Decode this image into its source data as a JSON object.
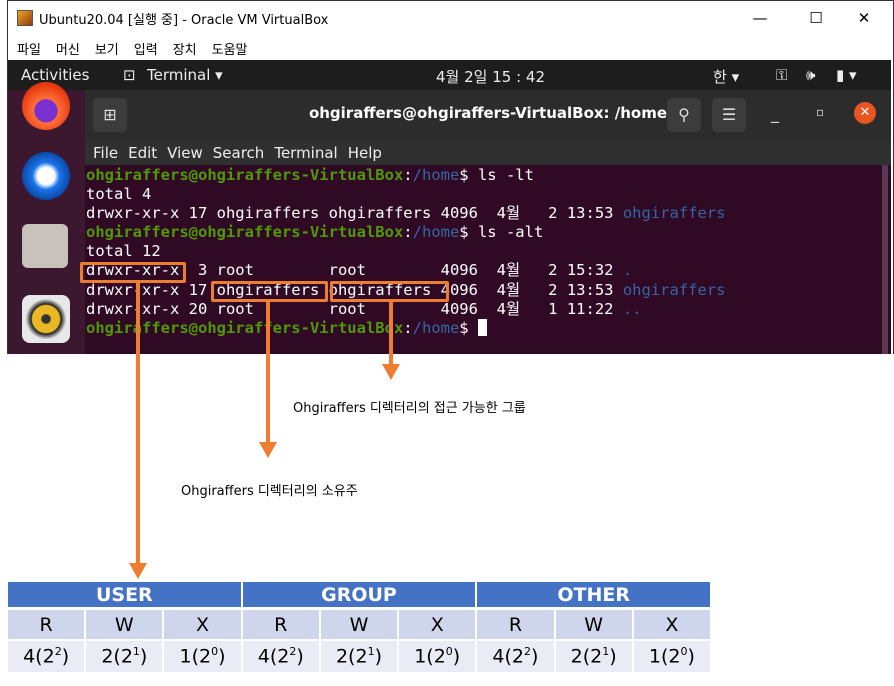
{
  "window": {
    "title": "Ubuntu20.04 [실행 중] - Oracle VM VirtualBox",
    "menu": [
      "파일",
      "머신",
      "보기",
      "입력",
      "장치",
      "도움말"
    ]
  },
  "topbar": {
    "activities": "Activities",
    "app": "Terminal ▾",
    "clock": "4월 2일  15 : 42",
    "ime": "한 ▾"
  },
  "terminal": {
    "title": "ohgiraffers@ohgiraffers-VirtualBox: /home",
    "menu": [
      "File",
      "Edit",
      "View",
      "Search",
      "Terminal",
      "Help"
    ],
    "prompt_user": "ohgiraffers@ohgiraffers-VirtualBox",
    "prompt_path": "/home",
    "cmd1": " ls -lt",
    "out1": [
      "total 4"
    ],
    "row_lt": "drwxr-xr-x 17 ohgiraffers ohgiraffers 4096  4월   2 13:53 ",
    "row_lt_name": "ohgiraffers",
    "cmd2": " ls -alt",
    "out2": "total 12",
    "rows": [
      {
        "text": "drwxr-xr-x  3 root        root        4096  4월   2 15:32 ",
        "name": "."
      },
      {
        "text": "drwxr-xr-x 17 ohgiraffers ohgiraffers 4096  4월   2 13:53 ",
        "name": "ohgiraffers"
      },
      {
        "text": "drwxr-xr-x 20 root        root        4096  4월   1 11:22 ",
        "name": ".."
      }
    ]
  },
  "annotations": {
    "group_label": "Ohgiraffers 디렉터리의 접근 가능한 그룹",
    "owner_label": "Ohgiraffers 디렉터리의 소유주",
    "accent": "#ed7d31"
  },
  "table": {
    "headers": [
      "USER",
      "GROUP",
      "OTHER"
    ],
    "perms": [
      "R",
      "W",
      "X"
    ],
    "values": [
      {
        "base": "4(2",
        "exp": "2"
      },
      {
        "base": "2(2",
        "exp": "1"
      },
      {
        "base": "1(2",
        "exp": "0"
      }
    ],
    "header_color": "#4472c4"
  }
}
